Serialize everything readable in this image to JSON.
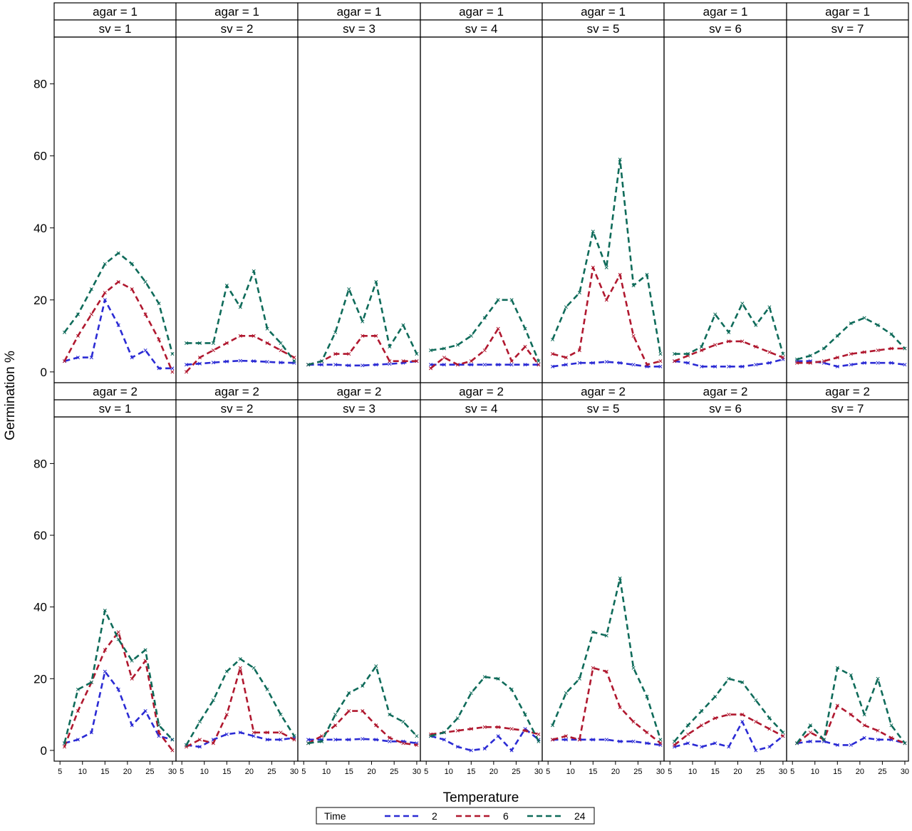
{
  "chart_data": {
    "type": "line",
    "xlabel": "Temperature",
    "ylabel": "Germination %",
    "xlim": [
      5,
      30
    ],
    "ylim": [
      -3,
      93
    ],
    "x_ticks": [
      "5",
      "10",
      "15",
      "20",
      "25",
      "30"
    ],
    "y_ticks": [
      "0",
      "20",
      "40",
      "60",
      "80"
    ],
    "grid": false,
    "legend": {
      "title": "Time",
      "placement": "bottom-center",
      "entries": [
        {
          "label": "2",
          "color": "#2b2bd4"
        },
        {
          "label": "6",
          "color": "#b0182f"
        },
        {
          "label": "24",
          "color": "#0f6b5a"
        }
      ]
    },
    "x": [
      6,
      9,
      12,
      15,
      18,
      21,
      24,
      27,
      30
    ],
    "panels": [
      {
        "agar_label": "agar = 1",
        "sv_label": "sv = 1",
        "series": [
          {
            "name": "2",
            "values": [
              3,
              4,
              4,
              20,
              13,
              4,
              6,
              1,
              1
            ]
          },
          {
            "name": "6",
            "values": [
              3,
              10,
              16,
              22,
              25,
              23,
              16,
              9,
              0
            ]
          },
          {
            "name": "24",
            "values": [
              11,
              16,
              23,
              30,
              33,
              30,
              25,
              19,
              5
            ]
          }
        ]
      },
      {
        "agar_label": "agar = 1",
        "sv_label": "sv = 2",
        "series": [
          {
            "name": "2",
            "values": [
              2,
              2.3,
              2.6,
              2.9,
              3.1,
              3,
              2.8,
              2.6,
              2.5
            ]
          },
          {
            "name": "6",
            "values": [
              0,
              4,
              6,
              8,
              10,
              10,
              8,
              6,
              4
            ]
          },
          {
            "name": "24",
            "values": [
              8,
              8,
              8,
              24,
              18,
              28,
              12,
              8,
              3
            ]
          }
        ]
      },
      {
        "agar_label": "agar = 1",
        "sv_label": "sv = 3",
        "series": [
          {
            "name": "2",
            "values": [
              2,
              2,
              2,
              1.8,
              1.8,
              2,
              2.2,
              2.5,
              3
            ]
          },
          {
            "name": "6",
            "values": [
              2,
              3,
              5,
              5,
              10,
              10,
              3,
              3,
              3
            ]
          },
          {
            "name": "24",
            "values": [
              2,
              3,
              11,
              23,
              14,
              25,
              7,
              13,
              5
            ]
          }
        ]
      },
      {
        "agar_label": "agar = 1",
        "sv_label": "sv = 4",
        "series": [
          {
            "name": "2",
            "values": [
              2,
              2,
              2,
              2,
              2,
              2,
              2,
              2,
              2
            ]
          },
          {
            "name": "6",
            "values": [
              1,
              4,
              2,
              3,
              6,
              12,
              3,
              7,
              2
            ]
          },
          {
            "name": "24",
            "values": [
              6,
              6.5,
              7.5,
              10,
              15,
              20,
              20,
              12,
              3
            ]
          }
        ]
      },
      {
        "agar_label": "agar = 1",
        "sv_label": "sv = 5",
        "series": [
          {
            "name": "2",
            "values": [
              1.5,
              2,
              2.5,
              2.5,
              2.8,
              2.5,
              2,
              1.5,
              1.5
            ]
          },
          {
            "name": "6",
            "values": [
              5,
              4,
              6,
              29,
              20,
              27,
              10,
              2,
              3
            ]
          },
          {
            "name": "24",
            "values": [
              9,
              18,
              22,
              39,
              29,
              59,
              24,
              27,
              5
            ]
          }
        ]
      },
      {
        "agar_label": "agar = 1",
        "sv_label": "sv = 6",
        "series": [
          {
            "name": "2",
            "values": [
              3,
              2.5,
              1.5,
              1.5,
              1.5,
              1.5,
              2,
              2.5,
              3.5
            ]
          },
          {
            "name": "6",
            "values": [
              3,
              4.5,
              6,
              7.5,
              8.5,
              8.5,
              7,
              5.5,
              4
            ]
          },
          {
            "name": "24",
            "values": [
              5,
              5,
              7,
              16,
              11,
              19,
              13,
              18,
              5
            ]
          }
        ]
      },
      {
        "agar_label": "agar = 1",
        "sv_label": "sv = 7",
        "series": [
          {
            "name": "2",
            "values": [
              3,
              3,
              2.5,
              1.5,
              2,
              2.5,
              2.5,
              2.5,
              2
            ]
          },
          {
            "name": "6",
            "values": [
              2.5,
              2.5,
              3,
              4,
              5,
              5.5,
              6,
              6.5,
              6.5
            ]
          },
          {
            "name": "24",
            "values": [
              3.5,
              4.5,
              6.5,
              10,
              13.5,
              15,
              13,
              10.5,
              6.5
            ]
          }
        ]
      },
      {
        "agar_label": "agar = 2",
        "sv_label": "sv = 1",
        "series": [
          {
            "name": "2",
            "values": [
              2,
              3,
              5,
              22,
              17,
              7,
              11,
              4,
              3
            ]
          },
          {
            "name": "6",
            "values": [
              1,
              11,
              19,
              28,
              33,
              20,
              25,
              5,
              0
            ]
          },
          {
            "name": "24",
            "values": [
              2,
              17,
              19,
              39,
              31,
              25,
              28,
              7,
              3
            ]
          }
        ]
      },
      {
        "agar_label": "agar = 2",
        "sv_label": "sv = 2",
        "series": [
          {
            "name": "2",
            "values": [
              1.5,
              1,
              3,
              4.5,
              5,
              4,
              3,
              3,
              3.5
            ]
          },
          {
            "name": "6",
            "values": [
              1,
              3,
              2,
              10,
              23,
              5,
              5,
              5,
              3
            ]
          },
          {
            "name": "24",
            "values": [
              1.5,
              8,
              14,
              22,
              25.5,
              23,
              17,
              10,
              4
            ]
          }
        ]
      },
      {
        "agar_label": "agar = 2",
        "sv_label": "sv = 3",
        "series": [
          {
            "name": "2",
            "values": [
              3,
              3,
              3,
              3,
              3.2,
              3,
              2.5,
              2.5,
              2
            ]
          },
          {
            "name": "6",
            "values": [
              2,
              4,
              7,
              11,
              11,
              7,
              3.5,
              2,
              1.5
            ]
          },
          {
            "name": "24",
            "values": [
              2,
              2.5,
              10,
              16,
              18,
              23.5,
              10,
              8,
              4
            ]
          }
        ]
      },
      {
        "agar_label": "agar = 2",
        "sv_label": "sv = 4",
        "series": [
          {
            "name": "2",
            "values": [
              4,
              3,
              1,
              0,
              0.5,
              4,
              0,
              6,
              3
            ]
          },
          {
            "name": "6",
            "values": [
              4.5,
              5,
              5.5,
              6,
              6.5,
              6.5,
              6,
              5.5,
              4.5
            ]
          },
          {
            "name": "24",
            "values": [
              4,
              5,
              9,
              16,
              20.5,
              20,
              17,
              10,
              2.5
            ]
          }
        ]
      },
      {
        "agar_label": "agar = 2",
        "sv_label": "sv = 5",
        "series": [
          {
            "name": "2",
            "values": [
              3,
              3,
              3,
              3,
              3,
              2.5,
              2.5,
              2,
              1.5
            ]
          },
          {
            "name": "6",
            "values": [
              3,
              4,
              3,
              23,
              22,
              12,
              8,
              5,
              2
            ]
          },
          {
            "name": "24",
            "values": [
              7,
              16,
              20,
              33,
              32,
              48,
              23,
              15,
              3
            ]
          }
        ]
      },
      {
        "agar_label": "agar = 2",
        "sv_label": "sv = 6",
        "series": [
          {
            "name": "2",
            "values": [
              1,
              2,
              1,
              2,
              1,
              8,
              0,
              1,
              4
            ]
          },
          {
            "name": "6",
            "values": [
              1.5,
              4.5,
              7,
              9,
              10,
              10,
              8,
              6,
              4
            ]
          },
          {
            "name": "24",
            "values": [
              2.5,
              7,
              11,
              15,
              20,
              19,
              14,
              9,
              5
            ]
          }
        ]
      },
      {
        "agar_label": "agar = 2",
        "sv_label": "sv = 7",
        "series": [
          {
            "name": "2",
            "values": [
              2,
              2.5,
              2.5,
              1.5,
              1.5,
              3.5,
              3,
              3,
              2
            ]
          },
          {
            "name": "6",
            "values": [
              2,
              5,
              3,
              12.5,
              10,
              7,
              5.5,
              3.5,
              2
            ]
          },
          {
            "name": "24",
            "values": [
              2,
              7,
              3,
              23,
              21,
              10,
              20,
              7,
              2
            ]
          }
        ]
      }
    ]
  }
}
